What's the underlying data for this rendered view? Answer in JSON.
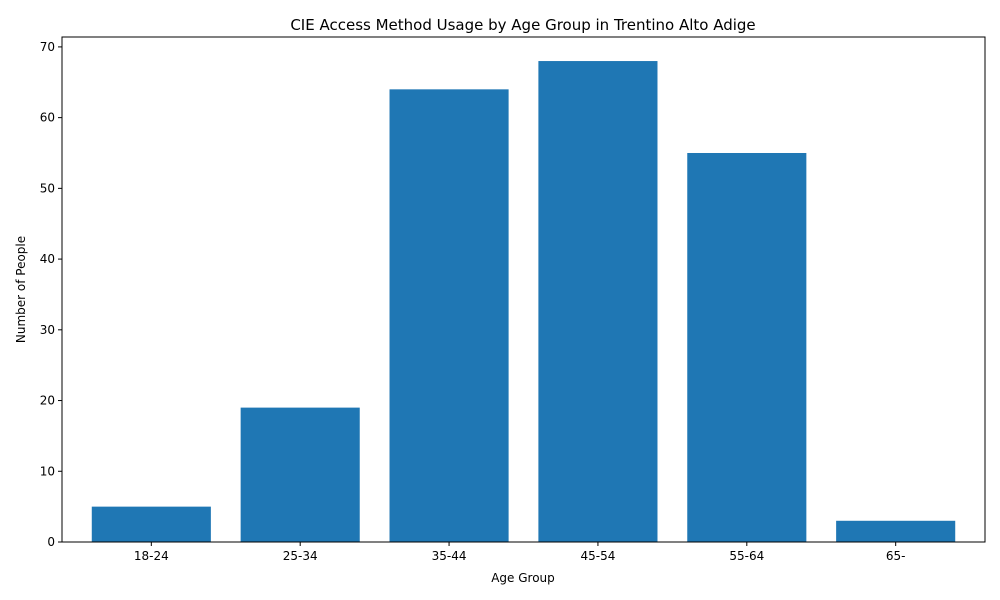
{
  "chart_data": {
    "type": "bar",
    "title": "CIE Access Method Usage by Age Group in Trentino Alto Adige",
    "xlabel": "Age Group",
    "ylabel": "Number of People",
    "categories": [
      "18-24",
      "25-34",
      "35-44",
      "45-54",
      "55-64",
      "65-"
    ],
    "values": [
      5,
      19,
      64,
      68,
      55,
      3
    ],
    "ylim": [
      0,
      71.4
    ],
    "yticks": [
      0,
      10,
      20,
      30,
      40,
      50,
      60,
      70
    ],
    "grid": false,
    "bar_color": "#1f77b4"
  }
}
